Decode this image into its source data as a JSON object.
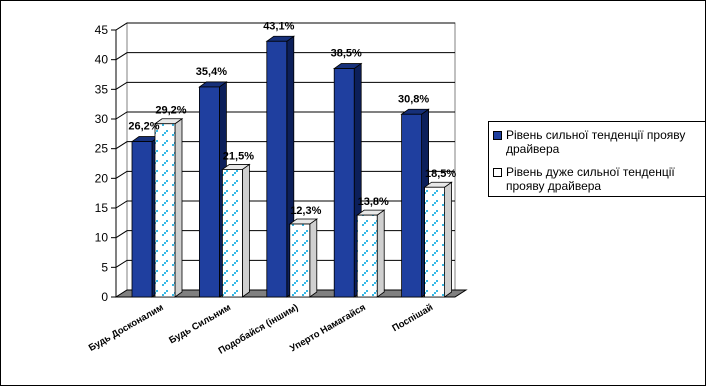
{
  "chart_data": {
    "type": "bar",
    "categories": [
      "Будь Досконалим",
      "Будь Сильним",
      "Подобайся (іншим)",
      "Уперто Намагайся",
      "Поспішай"
    ],
    "series": [
      {
        "name": "Рівень сильної тенденції прояву драйвера",
        "values": [
          26.2,
          35.4,
          43.1,
          38.5,
          30.8
        ],
        "labels": [
          "26,2%",
          "35,4%",
          "43,1%",
          "38,5%",
          "30,8%"
        ],
        "color": "#1F3F9F"
      },
      {
        "name": "Рівень дуже сильної тенденції прояву драйвера",
        "values": [
          29.2,
          21.5,
          12.3,
          13.8,
          18.5
        ],
        "labels": [
          "29,2%",
          "21,5%",
          "12,3%",
          "13,8%",
          "18,5%"
        ],
        "color": "#FFFFFF",
        "pattern_color": "#35B8E6"
      }
    ],
    "y_ticks": [
      "0",
      "5",
      "10",
      "15",
      "20",
      "25",
      "30",
      "35",
      "40",
      "45"
    ],
    "ylim": [
      0,
      45
    ],
    "grid": true,
    "legend_position": "right",
    "style": "3d-clustered-column"
  }
}
